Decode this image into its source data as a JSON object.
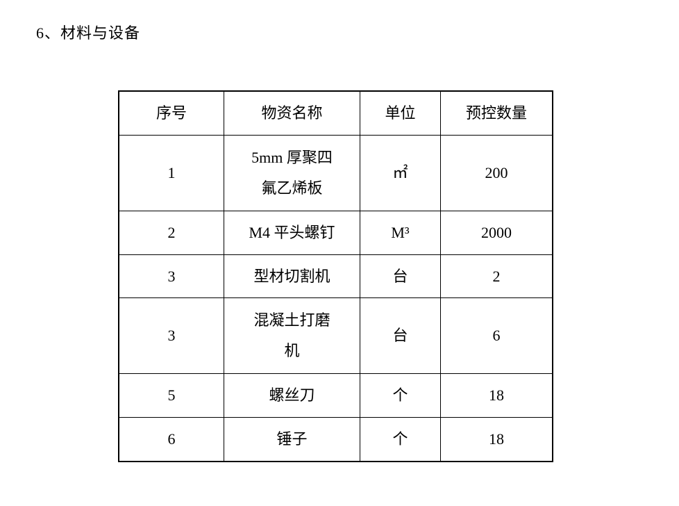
{
  "heading": "6、材料与设备",
  "table": {
    "columns": [
      "序号",
      "物资名称",
      "单位",
      "预控数量"
    ],
    "rows": [
      {
        "seq": "1",
        "name_lines": [
          "5mm 厚聚四",
          "氟乙烯板"
        ],
        "unit": "㎡",
        "qty": "200"
      },
      {
        "seq": "2",
        "name_lines": [
          "M4 平头螺钉"
        ],
        "unit": "M³",
        "qty": "2000"
      },
      {
        "seq": "3",
        "name_lines": [
          "型材切割机"
        ],
        "unit": "台",
        "qty": "2"
      },
      {
        "seq": "3",
        "name_lines": [
          "混凝土打磨",
          "机"
        ],
        "unit": "台",
        "qty": "6"
      },
      {
        "seq": "5",
        "name_lines": [
          "螺丝刀"
        ],
        "unit": "个",
        "qty": "18"
      },
      {
        "seq": "6",
        "name_lines": [
          "锤子"
        ],
        "unit": "个",
        "qty": "18"
      }
    ]
  }
}
